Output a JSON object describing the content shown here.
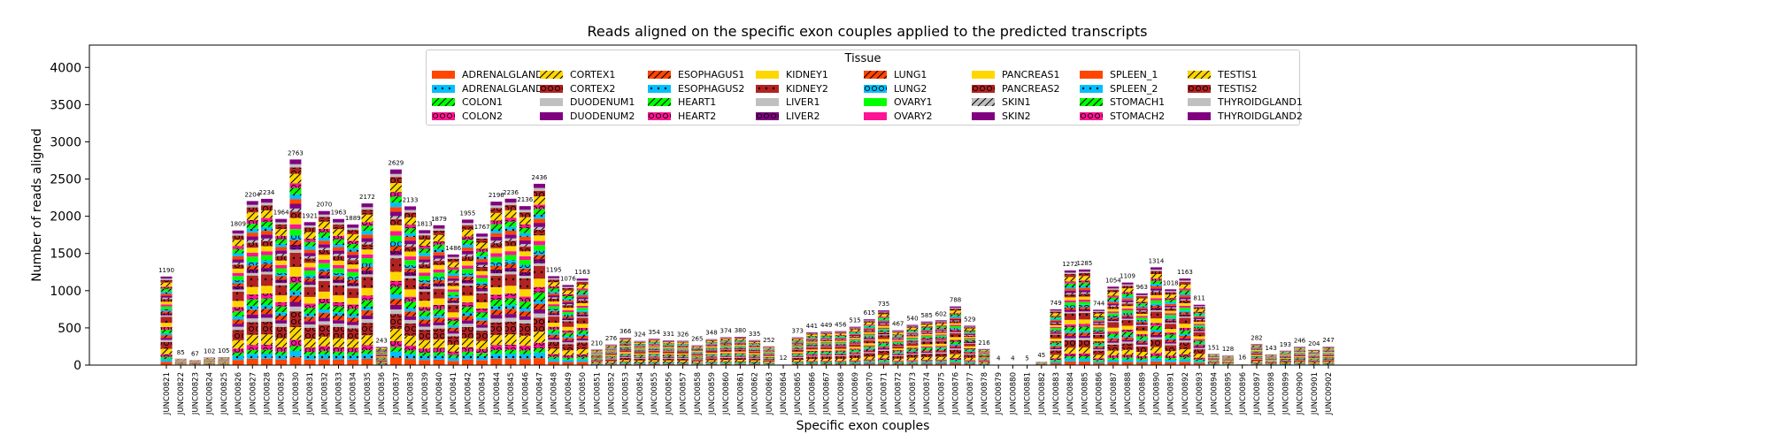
{
  "chart_data": {
    "type": "bar",
    "stacked": true,
    "title": "Reads aligned on the specific exon couples applied to the predicted transcripts",
    "xlabel": "Specific exon couples",
    "ylabel": "Number of reads aligned",
    "ylim": [
      0,
      4300
    ],
    "yticks": [
      0,
      500,
      1000,
      1500,
      2000,
      2500,
      3000,
      3500,
      4000
    ],
    "legend_title": "Tissue",
    "legend_position": "top-center",
    "series_names": [
      "ADRENALGLAND1",
      "ADRENALGLAND2",
      "COLON1",
      "COLON2",
      "CORTEX1",
      "CORTEX2",
      "DUODENUM1",
      "DUODENUM2",
      "ESOPHAGUS1",
      "ESOPHAGUS2",
      "HEART1",
      "HEART2",
      "KIDNEY1",
      "KIDNEY2",
      "LIVER1",
      "LIVER2",
      "LUNG1",
      "LUNG2",
      "OVARY1",
      "OVARY2",
      "PANCREAS1",
      "PANCREAS2",
      "SKIN1",
      "SKIN2",
      "SPLEEN_1",
      "SPLEEN_2",
      "STOMACH1",
      "STOMACH2",
      "TESTIS1",
      "TESTIS2",
      "THYROIDGLAND1",
      "THYROIDGLAND2"
    ],
    "series_colors": [
      "#ff4500",
      "#00bfff",
      "#00ff00",
      "#ff1493",
      "#ffd700",
      "#b22222",
      "#c0c0c0",
      "#800080",
      "#ff4500",
      "#00bfff",
      "#00ff00",
      "#ff1493",
      "#ffd700",
      "#b22222",
      "#c0c0c0",
      "#800080",
      "#ff4500",
      "#00bfff",
      "#00ff00",
      "#ff1493",
      "#ffd700",
      "#b22222",
      "#c0c0c0",
      "#800080",
      "#ff4500",
      "#00bfff",
      "#00ff00",
      "#ff1493",
      "#ffd700",
      "#b22222",
      "#c0c0c0",
      "#800080"
    ],
    "series_hatches": [
      "none",
      "dot",
      "slash",
      "circle",
      "slash",
      "circle",
      "none",
      "none",
      "slash",
      "dot",
      "slash",
      "circle",
      "none",
      "dot",
      "none",
      "circle",
      "slash",
      "circle",
      "none",
      "none",
      "none",
      "circle",
      "slash",
      "none",
      "none",
      "dot",
      "slash",
      "circle",
      "slash",
      "circle",
      "none",
      "none"
    ],
    "categories": [
      "JUNC00821",
      "JUNC00822",
      "JUNC00823",
      "JUNC00824",
      "JUNC00825",
      "JUNC00826",
      "JUNC00827",
      "JUNC00828",
      "JUNC00829",
      "JUNC00830",
      "JUNC00831",
      "JUNC00832",
      "JUNC00833",
      "JUNC00834",
      "JUNC00835",
      "JUNC00836",
      "JUNC00837",
      "JUNC00838",
      "JUNC00839",
      "JUNC00840",
      "JUNC00841",
      "JUNC00842",
      "JUNC00843",
      "JUNC00844",
      "JUNC00845",
      "JUNC00846",
      "JUNC00847",
      "JUNC00848",
      "JUNC00849",
      "JUNC00850",
      "JUNC00851",
      "JUNC00852",
      "JUNC00853",
      "JUNC00854",
      "JUNC00855",
      "JUNC00856",
      "JUNC00857",
      "JUNC00858",
      "JUNC00859",
      "JUNC00860",
      "JUNC00861",
      "JUNC00862",
      "JUNC00863",
      "JUNC00864",
      "JUNC00865",
      "JUNC00866",
      "JUNC00867",
      "JUNC00868",
      "JUNC00869",
      "JUNC00870",
      "JUNC00871",
      "JUNC00872",
      "JUNC00873",
      "JUNC00874",
      "JUNC00875",
      "JUNC00876",
      "JUNC00877",
      "JUNC00878",
      "JUNC00879",
      "JUNC00880",
      "JUNC00881",
      "JUNC00882",
      "JUNC00883",
      "JUNC00884",
      "JUNC00885",
      "JUNC00886",
      "JUNC00887",
      "JUNC00888",
      "JUNC00889",
      "JUNC00890",
      "JUNC00891",
      "JUNC00892",
      "JUNC00893",
      "JUNC00894",
      "JUNC00895",
      "JUNC00896",
      "JUNC00897",
      "JUNC00898",
      "JUNC00899",
      "JUNC00900",
      "JUNC00901",
      "JUNC00902"
    ],
    "totals": [
      1190,
      85,
      67,
      102,
      105,
      1809,
      2204,
      2234,
      1964,
      2763,
      1921,
      2070,
      1963,
      1889,
      2172,
      243,
      2629,
      2133,
      1813,
      1879,
      1486,
      1955,
      1767,
      2196,
      2236,
      2136,
      2436,
      1195,
      1076,
      1163,
      210,
      276,
      366,
      324,
      354,
      331,
      326,
      265,
      348,
      374,
      380,
      335,
      252,
      12,
      373,
      441,
      449,
      456,
      515,
      615,
      735,
      467,
      540,
      585,
      602,
      788,
      529,
      216,
      4,
      4,
      5,
      45,
      749,
      1272,
      1285,
      744,
      1054,
      1109,
      963,
      1314,
      1018,
      1163,
      811,
      151,
      128,
      16,
      282,
      143,
      193,
      246,
      204,
      247
    ],
    "total_labels": [
      "1190",
      "85",
      "67",
      "102",
      "105",
      "1809",
      "2204",
      "2234",
      "1964",
      "2763",
      "1921",
      "2070",
      "1963",
      "1889",
      "2172",
      "243",
      "2629",
      "2133",
      "1813",
      "1879",
      "1486",
      "1955",
      "1767",
      "2196",
      "2236",
      "2136",
      "2436",
      "1195",
      "1076",
      "1163",
      "210",
      "276",
      "366",
      "324",
      "354",
      "331",
      "326",
      "265",
      "348",
      "374",
      "380",
      "335",
      "252",
      "12",
      "373",
      "441",
      "449",
      "456",
      "515",
      "615",
      "735",
      "467",
      "540",
      "585",
      "602",
      "788",
      "529",
      "216",
      "4",
      "4",
      "5",
      "45",
      "749",
      "1272",
      "1285",
      "744",
      "1054",
      "1109",
      "963",
      "1314",
      "1018",
      "1163",
      "811",
      "151",
      "128",
      "16",
      "282",
      "143",
      "193",
      "246",
      "204",
      "247"
    ],
    "note": "Per-tissue segment values are not labeled in the figure; stacks are rendered by splitting each bar's labeled total in an approximate fixed tissue proportion."
  }
}
